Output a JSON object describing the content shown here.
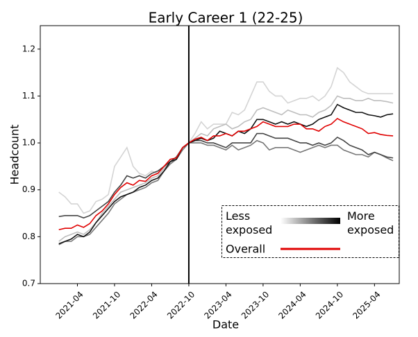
{
  "chart_data": {
    "type": "line",
    "title": "Early Career 1 (22-25)",
    "x_label": "Date",
    "y_label": "Headcount",
    "x": [
      "2021-01",
      "2021-02",
      "2021-03",
      "2021-04",
      "2021-05",
      "2021-06",
      "2021-07",
      "2021-08",
      "2021-09",
      "2021-10",
      "2021-11",
      "2021-12",
      "2022-01",
      "2022-02",
      "2022-03",
      "2022-04",
      "2022-05",
      "2022-06",
      "2022-07",
      "2022-08",
      "2022-09",
      "2022-10",
      "2022-11",
      "2022-12",
      "2023-01",
      "2023-02",
      "2023-03",
      "2023-04",
      "2023-05",
      "2023-06",
      "2023-07",
      "2023-08",
      "2023-09",
      "2023-10",
      "2023-11",
      "2023-12",
      "2024-01",
      "2024-02",
      "2024-03",
      "2024-04",
      "2024-05",
      "2024-06",
      "2024-07",
      "2024-08",
      "2024-09",
      "2024-10",
      "2024-11",
      "2024-12",
      "2025-01",
      "2025-02",
      "2025-03",
      "2025-04",
      "2025-05",
      "2025-06",
      "2025-07"
    ],
    "xlim": [
      "2020-10",
      "2025-08"
    ],
    "xticks": [
      "2021-04",
      "2021-10",
      "2022-04",
      "2022-10",
      "2023-04",
      "2023-10",
      "2024-04",
      "2024-10",
      "2025-04"
    ],
    "ylim": [
      0.7,
      1.25
    ],
    "yticks": [
      0.7,
      0.8,
      0.9,
      {
        "value": 1,
        "label": "1.0"
      },
      1.1,
      1.2
    ],
    "vline": "2022-10",
    "legend": {
      "low_label": "Less exposed",
      "high_label": "More exposed"
    },
    "series": [
      {
        "color": "#d4d4d4",
        "values": [
          0.895,
          0.885,
          0.87,
          0.87,
          0.85,
          0.855,
          0.875,
          0.88,
          0.89,
          0.95,
          0.97,
          0.99,
          0.95,
          0.935,
          0.93,
          0.94,
          0.935,
          0.95,
          0.955,
          0.97,
          0.985,
          1.0,
          1.02,
          1.045,
          1.03,
          1.04,
          1.04,
          1.04,
          1.065,
          1.06,
          1.07,
          1.1,
          1.13,
          1.13,
          1.11,
          1.1,
          1.1,
          1.085,
          1.09,
          1.095,
          1.095,
          1.1,
          1.09,
          1.1,
          1.12,
          1.16,
          1.15,
          1.13,
          1.12,
          1.11,
          1.105,
          1.105,
          1.105,
          1.105,
          1.105
        ]
      },
      {
        "color": "#bdbdbd",
        "values": [
          0.79,
          0.8,
          0.805,
          0.81,
          0.805,
          0.815,
          0.83,
          0.85,
          0.865,
          0.88,
          0.895,
          0.9,
          0.905,
          0.91,
          0.915,
          0.925,
          0.93,
          0.945,
          0.96,
          0.97,
          0.99,
          1.0,
          1.01,
          1.02,
          1.015,
          1.03,
          1.035,
          1.04,
          1.03,
          1.035,
          1.045,
          1.05,
          1.07,
          1.075,
          1.07,
          1.065,
          1.06,
          1.07,
          1.065,
          1.06,
          1.06,
          1.055,
          1.065,
          1.07,
          1.08,
          1.1,
          1.095,
          1.095,
          1.09,
          1.09,
          1.095,
          1.09,
          1.09,
          1.088,
          1.085
        ]
      },
      {
        "color": "#777777",
        "values": [
          0.783,
          0.79,
          0.79,
          0.8,
          0.8,
          0.805,
          0.82,
          0.835,
          0.85,
          0.87,
          0.88,
          0.89,
          0.895,
          0.9,
          0.905,
          0.915,
          0.92,
          0.94,
          0.955,
          0.965,
          0.985,
          1.0,
          1.0,
          1.0,
          0.995,
          0.995,
          0.99,
          0.985,
          0.995,
          0.985,
          0.99,
          0.995,
          1.005,
          1.0,
          0.985,
          0.99,
          0.99,
          0.99,
          0.985,
          0.98,
          0.985,
          0.99,
          0.995,
          0.99,
          0.995,
          0.995,
          0.985,
          0.98,
          0.975,
          0.975,
          0.97,
          0.98,
          0.975,
          0.968,
          0.962
        ]
      },
      {
        "color": "#444444",
        "values": [
          0.843,
          0.845,
          0.845,
          0.845,
          0.84,
          0.845,
          0.855,
          0.865,
          0.875,
          0.895,
          0.91,
          0.93,
          0.925,
          0.93,
          0.925,
          0.935,
          0.94,
          0.95,
          0.96,
          0.97,
          0.99,
          1.0,
          1.005,
          1.005,
          1.0,
          1.0,
          0.995,
          0.99,
          1.0,
          1.0,
          1.0,
          1.0,
          1.02,
          1.02,
          1.015,
          1.01,
          1.01,
          1.01,
          1.005,
          1.0,
          1.0,
          0.995,
          1.0,
          0.995,
          1.0,
          1.012,
          1.005,
          0.995,
          0.99,
          0.985,
          0.975,
          0.98,
          0.975,
          0.97,
          0.968
        ]
      },
      {
        "color": "#111111",
        "values": [
          0.785,
          0.79,
          0.795,
          0.805,
          0.8,
          0.81,
          0.83,
          0.845,
          0.86,
          0.875,
          0.885,
          0.89,
          0.895,
          0.905,
          0.91,
          0.92,
          0.925,
          0.94,
          0.96,
          0.965,
          0.99,
          1.0,
          1.005,
          1.01,
          1.005,
          1.01,
          1.025,
          1.02,
          1.015,
          1.025,
          1.02,
          1.03,
          1.05,
          1.05,
          1.045,
          1.04,
          1.045,
          1.04,
          1.045,
          1.04,
          1.035,
          1.04,
          1.05,
          1.055,
          1.06,
          1.082,
          1.075,
          1.07,
          1.065,
          1.065,
          1.06,
          1.058,
          1.055,
          1.06,
          1.062
        ]
      },
      {
        "name": "Overall",
        "color": "#e00000",
        "values": [
          0.815,
          0.818,
          0.818,
          0.825,
          0.82,
          0.828,
          0.845,
          0.855,
          0.87,
          0.89,
          0.905,
          0.915,
          0.91,
          0.92,
          0.918,
          0.93,
          0.935,
          0.95,
          0.965,
          0.968,
          0.99,
          1.0,
          1.008,
          1.012,
          1.005,
          1.015,
          1.015,
          1.02,
          1.015,
          1.025,
          1.025,
          1.03,
          1.035,
          1.045,
          1.04,
          1.035,
          1.035,
          1.035,
          1.04,
          1.04,
          1.03,
          1.03,
          1.025,
          1.035,
          1.04,
          1.052,
          1.045,
          1.04,
          1.035,
          1.03,
          1.02,
          1.022,
          1.018,
          1.016,
          1.015
        ]
      }
    ]
  }
}
